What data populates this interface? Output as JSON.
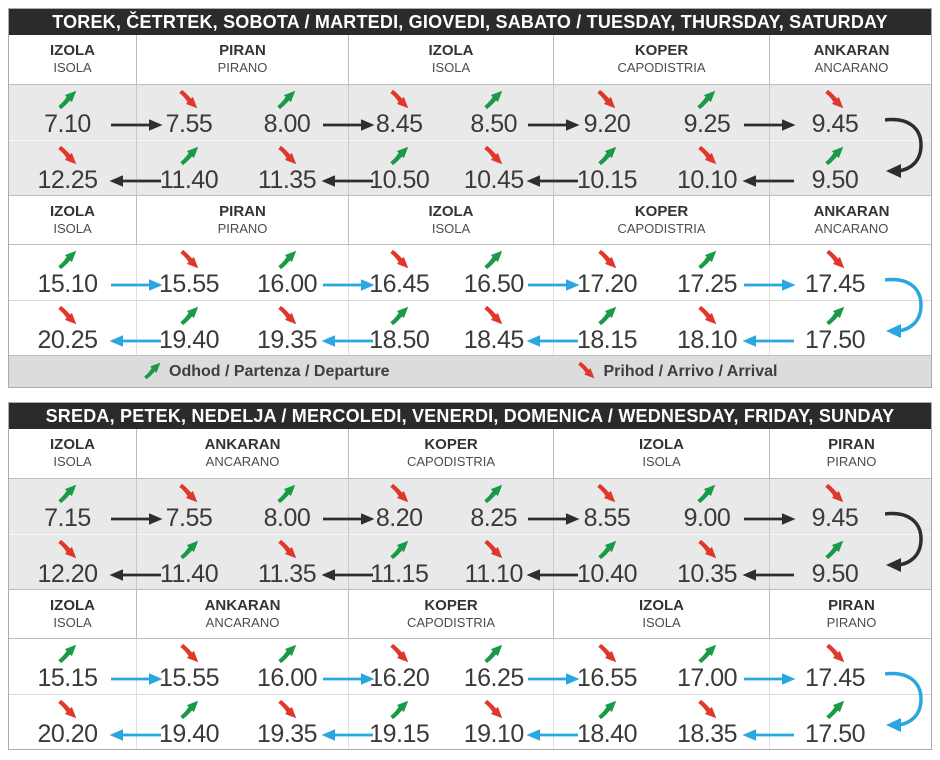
{
  "colors": {
    "departure_green": "#189a47",
    "arrival_red": "#e0372c",
    "route_black": "#2e2e2e",
    "route_blue": "#29a7e1",
    "header_bar_bg": "#2b2b2b",
    "header_bar_text": "#ffffff",
    "row_shade_gray": "#e9e9e9",
    "legend_bg": "#dcdcdc",
    "time_text": "#3a3a3a"
  },
  "legend": {
    "departure_label": "Odhod / Partenza / Departure",
    "arrival_label": "Prihod / Arrivo / Arrival"
  },
  "tables": [
    {
      "day_header": "TOREK, ČETRTEK, SOBOTA / MARTEDI, GIOVEDI, SABATO / TUESDAY, THURSDAY, SATURDAY",
      "show_legend": true,
      "stations": [
        {
          "primary": "IZOLA",
          "secondary": "ISOLA"
        },
        {
          "primary": "PIRAN",
          "secondary": "PIRANO"
        },
        {
          "primary": "IZOLA",
          "secondary": "ISOLA"
        },
        {
          "primary": "KOPER",
          "secondary": "CAPODISTRIA"
        },
        {
          "primary": "ANKARAN",
          "secondary": "ANCARANO"
        }
      ],
      "blocks": [
        {
          "arrow_color": "black",
          "outbound": [
            {
              "time": "7.10",
              "type": "departure"
            },
            {
              "time": "7.55",
              "type": "arrival"
            },
            {
              "time": "8.00",
              "type": "departure"
            },
            {
              "time": "8.45",
              "type": "arrival"
            },
            {
              "time": "8.50",
              "type": "departure"
            },
            {
              "time": "9.20",
              "type": "arrival"
            },
            {
              "time": "9.25",
              "type": "departure"
            },
            {
              "time": "9.45",
              "type": "arrival"
            }
          ],
          "inbound": [
            {
              "time": "12.25",
              "type": "arrival"
            },
            {
              "time": "11.40",
              "type": "departure"
            },
            {
              "time": "11.35",
              "type": "arrival"
            },
            {
              "time": "10.50",
              "type": "departure"
            },
            {
              "time": "10.45",
              "type": "arrival"
            },
            {
              "time": "10.15",
              "type": "departure"
            },
            {
              "time": "10.10",
              "type": "arrival"
            },
            {
              "time": "9.50",
              "type": "departure"
            }
          ]
        },
        {
          "arrow_color": "blue",
          "outbound": [
            {
              "time": "15.10",
              "type": "departure"
            },
            {
              "time": "15.55",
              "type": "arrival"
            },
            {
              "time": "16.00",
              "type": "departure"
            },
            {
              "time": "16.45",
              "type": "arrival"
            },
            {
              "time": "16.50",
              "type": "departure"
            },
            {
              "time": "17.20",
              "type": "arrival"
            },
            {
              "time": "17.25",
              "type": "departure"
            },
            {
              "time": "17.45",
              "type": "arrival"
            }
          ],
          "inbound": [
            {
              "time": "20.25",
              "type": "arrival"
            },
            {
              "time": "19.40",
              "type": "departure"
            },
            {
              "time": "19.35",
              "type": "arrival"
            },
            {
              "time": "18.50",
              "type": "departure"
            },
            {
              "time": "18.45",
              "type": "arrival"
            },
            {
              "time": "18.15",
              "type": "departure"
            },
            {
              "time": "18.10",
              "type": "arrival"
            },
            {
              "time": "17.50",
              "type": "departure"
            }
          ]
        }
      ]
    },
    {
      "day_header": "SREDA, PETEK, NEDELJA / MERCOLEDI, VENERDI, DOMENICA / WEDNESDAY, FRIDAY, SUNDAY",
      "show_legend": false,
      "stations": [
        {
          "primary": "IZOLA",
          "secondary": "ISOLA"
        },
        {
          "primary": "ANKARAN",
          "secondary": "ANCARANO"
        },
        {
          "primary": "KOPER",
          "secondary": "CAPODISTRIA"
        },
        {
          "primary": "IZOLA",
          "secondary": "ISOLA"
        },
        {
          "primary": "PIRAN",
          "secondary": "PIRANO"
        }
      ],
      "blocks": [
        {
          "arrow_color": "black",
          "outbound": [
            {
              "time": "7.15",
              "type": "departure"
            },
            {
              "time": "7.55",
              "type": "arrival"
            },
            {
              "time": "8.00",
              "type": "departure"
            },
            {
              "time": "8.20",
              "type": "arrival"
            },
            {
              "time": "8.25",
              "type": "departure"
            },
            {
              "time": "8.55",
              "type": "arrival"
            },
            {
              "time": "9.00",
              "type": "departure"
            },
            {
              "time": "9.45",
              "type": "arrival"
            }
          ],
          "inbound": [
            {
              "time": "12.20",
              "type": "arrival"
            },
            {
              "time": "11.40",
              "type": "departure"
            },
            {
              "time": "11.35",
              "type": "arrival"
            },
            {
              "time": "11.15",
              "type": "departure"
            },
            {
              "time": "11.10",
              "type": "arrival"
            },
            {
              "time": "10.40",
              "type": "departure"
            },
            {
              "time": "10.35",
              "type": "arrival"
            },
            {
              "time": "9.50",
              "type": "departure"
            }
          ]
        },
        {
          "arrow_color": "blue",
          "outbound": [
            {
              "time": "15.15",
              "type": "departure"
            },
            {
              "time": "15.55",
              "type": "arrival"
            },
            {
              "time": "16.00",
              "type": "departure"
            },
            {
              "time": "16.20",
              "type": "arrival"
            },
            {
              "time": "16.25",
              "type": "departure"
            },
            {
              "time": "16.55",
              "type": "arrival"
            },
            {
              "time": "17.00",
              "type": "departure"
            },
            {
              "time": "17.45",
              "type": "arrival"
            }
          ],
          "inbound": [
            {
              "time": "20.20",
              "type": "arrival"
            },
            {
              "time": "19.40",
              "type": "departure"
            },
            {
              "time": "19.35",
              "type": "arrival"
            },
            {
              "time": "19.15",
              "type": "departure"
            },
            {
              "time": "19.10",
              "type": "arrival"
            },
            {
              "time": "18.40",
              "type": "departure"
            },
            {
              "time": "18.35",
              "type": "arrival"
            },
            {
              "time": "17.50",
              "type": "departure"
            }
          ]
        }
      ]
    }
  ]
}
